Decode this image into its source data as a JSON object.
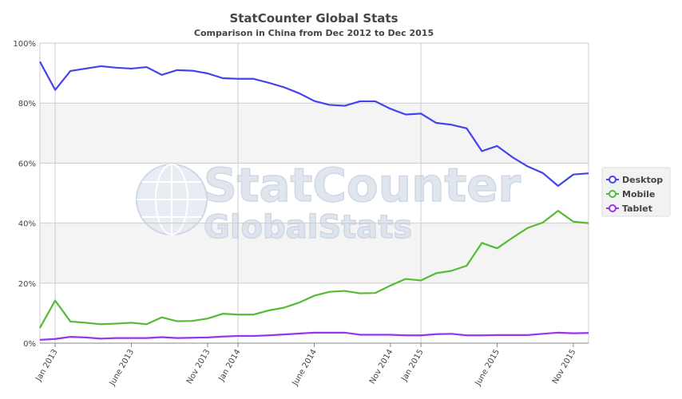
{
  "chart_data": {
    "type": "line",
    "title": "StatCounter Global Stats",
    "subtitle": "Comparison in China from Dec 2012 to Dec 2015",
    "watermark": {
      "line1": "StatCounter",
      "line2": "GlobalStats"
    },
    "ylim": [
      0,
      100
    ],
    "y_ticks": [
      "0%",
      "20%",
      "40%",
      "60%",
      "80%",
      "100%"
    ],
    "x_labels": [
      {
        "label": "Jan 2013",
        "index": 1
      },
      {
        "label": "June 2013",
        "index": 6
      },
      {
        "label": "Nov 2013",
        "index": 11
      },
      {
        "label": "Jan 2014",
        "index": 13
      },
      {
        "label": "June 2014",
        "index": 18
      },
      {
        "label": "Nov 2014",
        "index": 23
      },
      {
        "label": "Jan 2015",
        "index": 25
      },
      {
        "label": "June 2015",
        "index": 30
      },
      {
        "label": "Nov 2015",
        "index": 35
      }
    ],
    "year_markers": [
      1,
      13,
      25
    ],
    "grid": true,
    "legend_position": "right",
    "series": [
      {
        "name": "Desktop",
        "color": "#4444ee",
        "values": [
          93.8,
          84.4,
          90.7,
          91.5,
          92.3,
          91.8,
          91.5,
          92.0,
          89.4,
          91.0,
          90.8,
          89.9,
          88.3,
          88.1,
          88.1,
          86.8,
          85.3,
          83.3,
          80.7,
          79.4,
          79.1,
          80.6,
          80.6,
          78.1,
          76.2,
          76.5,
          73.4,
          72.8,
          71.6,
          64.0,
          65.7,
          62.0,
          58.9,
          56.7,
          52.4,
          56.2,
          56.6
        ]
      },
      {
        "name": "Mobile",
        "color": "#55bb33",
        "values": [
          5.1,
          14.2,
          7.2,
          6.8,
          6.3,
          6.5,
          6.8,
          6.3,
          8.6,
          7.3,
          7.4,
          8.2,
          9.8,
          9.5,
          9.5,
          10.9,
          11.8,
          13.5,
          15.8,
          17.1,
          17.4,
          16.6,
          16.7,
          19.2,
          21.4,
          20.9,
          23.3,
          24.1,
          25.8,
          33.4,
          31.6,
          35.1,
          38.4,
          40.2,
          44.1,
          40.5,
          40.0
        ]
      },
      {
        "name": "Tablet",
        "color": "#9933ee",
        "values": [
          1.1,
          1.4,
          2.1,
          1.9,
          1.5,
          1.7,
          1.7,
          1.7,
          2.0,
          1.7,
          1.8,
          1.9,
          2.2,
          2.4,
          2.4,
          2.6,
          2.9,
          3.2,
          3.5,
          3.5,
          3.5,
          2.8,
          2.8,
          2.8,
          2.6,
          2.6,
          3.0,
          3.1,
          2.6,
          2.6,
          2.7,
          2.7,
          2.7,
          3.1,
          3.5,
          3.3,
          3.4
        ]
      }
    ]
  }
}
